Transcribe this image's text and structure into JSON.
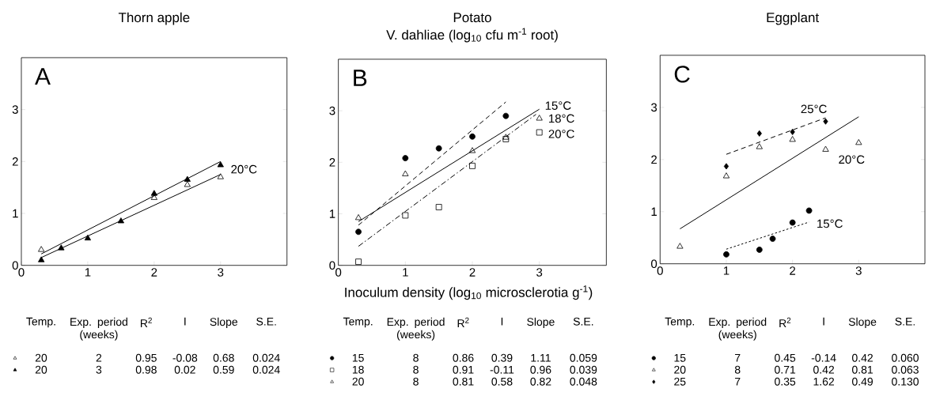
{
  "chart_data": [
    {
      "type": "scatter",
      "title": "Thorn apple",
      "xlim": [
        0,
        4
      ],
      "ylim": [
        0,
        4
      ],
      "xticks": [
        0,
        1,
        2,
        3
      ],
      "yticks": [
        0,
        1,
        2,
        3
      ],
      "annotations": [
        "A"
      ],
      "series": [
        {
          "type": "scatter",
          "marker": "triangle-open",
          "color": "#000000",
          "x": [
            0.3,
            2,
            2.5,
            3
          ],
          "values": [
            0.3,
            1.3,
            1.55,
            1.7
          ]
        },
        {
          "type": "scatter",
          "marker": "triangle",
          "color": "#000000",
          "x": [
            0.3,
            0.6,
            1,
            1.5,
            2,
            2.5,
            3
          ],
          "values": [
            0.1,
            0.33,
            0.52,
            0.85,
            1.38,
            1.65,
            1.93
          ]
        },
        {
          "type": "line",
          "name": "20°C",
          "line_style": "solid",
          "color": "#000000",
          "x": [
            0.3,
            3
          ],
          "values": [
            0.22,
            2.0
          ]
        },
        {
          "type": "line",
          "line_style": "solid",
          "color": "#000000",
          "x": [
            0.3,
            3
          ],
          "values": [
            0.15,
            1.75
          ]
        }
      ]
    },
    {
      "type": "scatter",
      "title": "Potato",
      "subtitle": "V. dahliae (log$_{10}$ cfu m$^{-1}$ root)",
      "xlabel": "Inoculum density (log$_{10}$ microsclerotia g$^{-1}$)",
      "xlim": [
        0,
        4
      ],
      "ylim": [
        0,
        4
      ],
      "xticks": [
        0,
        1,
        2,
        3
      ],
      "yticks": [
        0,
        1,
        2,
        3
      ],
      "annotations": [
        "B"
      ],
      "series": [
        {
          "type": "scatter",
          "marker": "circle",
          "color": "#000000",
          "x": [
            0.3,
            1,
            1.5,
            2,
            2.5
          ],
          "values": [
            0.65,
            2.08,
            2.27,
            2.5,
            2.9
          ]
        },
        {
          "type": "scatter",
          "marker": "square-open",
          "color": "#000000",
          "x": [
            0.3,
            1,
            1.5,
            2,
            2.5,
            3
          ],
          "values": [
            0.07,
            0.97,
            1.13,
            1.93,
            2.45,
            2.58
          ]
        },
        {
          "type": "scatter",
          "marker": "triangle-open",
          "color": "#000000",
          "x": [
            0.3,
            1,
            2,
            2.5,
            3
          ],
          "values": [
            0.92,
            1.77,
            2.22,
            2.48,
            2.85
          ]
        },
        {
          "type": "line",
          "name": "15°C",
          "line_style": "dashed",
          "color": "#000000",
          "x": [
            0.3,
            2.5
          ],
          "values": [
            0.78,
            3.17
          ]
        },
        {
          "type": "line",
          "name": "18°C",
          "line_style": "solid",
          "color": "#000000",
          "x": [
            0.3,
            3
          ],
          "values": [
            0.85,
            3.03
          ]
        },
        {
          "type": "line",
          "name": "20°C",
          "line_style": "dashdot",
          "color": "#000000",
          "x": [
            0.3,
            2.95
          ],
          "values": [
            0.37,
            2.93
          ]
        }
      ]
    },
    {
      "type": "scatter",
      "title": "Eggplant",
      "xlim": [
        0,
        4
      ],
      "ylim": [
        0,
        4
      ],
      "xticks": [
        0,
        1,
        2,
        3
      ],
      "yticks": [
        0,
        1,
        2,
        3
      ],
      "annotations": [
        "C"
      ],
      "series": [
        {
          "type": "scatter",
          "marker": "diamond",
          "color": "#000000",
          "x": [
            1,
            1.5,
            2,
            2.5
          ],
          "values": [
            1.87,
            2.5,
            2.53,
            2.73
          ]
        },
        {
          "type": "scatter",
          "marker": "triangle-open",
          "color": "#000000",
          "x": [
            0.3,
            1,
            1.5,
            2,
            2.5,
            3
          ],
          "values": [
            0.33,
            1.68,
            2.24,
            2.38,
            2.19,
            2.32
          ]
        },
        {
          "type": "scatter",
          "marker": "circle",
          "color": "#000000",
          "x": [
            1,
            1.5,
            1.7,
            2,
            2.25
          ],
          "values": [
            0.18,
            0.27,
            0.48,
            0.79,
            1.02
          ]
        },
        {
          "type": "line",
          "name": "25°C",
          "line_style": "dashed",
          "color": "#000000",
          "x": [
            1,
            2.5
          ],
          "values": [
            2.1,
            2.8
          ]
        },
        {
          "type": "line",
          "name": "20°C",
          "line_style": "solid",
          "color": "#000000",
          "x": [
            0.3,
            3
          ],
          "values": [
            0.67,
            2.82
          ]
        },
        {
          "type": "line",
          "name": "15°C",
          "line_style": "dotted",
          "color": "#000000",
          "x": [
            1,
            2.25
          ],
          "values": [
            0.28,
            0.8
          ]
        }
      ]
    },
    {
      "type": "other",
      "categories": [
        "Temp.",
        "Exp. period (weeks)",
        "R$^{2}$",
        "I",
        "Slope",
        "S.E."
      ],
      "series": [
        {
          "marker": "triangle-open",
          "color": "#000000",
          "values": [
            20,
            2,
            0.95,
            -0.08,
            0.68,
            0.024
          ],
          "value_labels": [
            "20",
            "2",
            "0.95",
            "-0.08",
            "0.68",
            "0.024"
          ]
        },
        {
          "marker": "triangle",
          "color": "#000000",
          "values": [
            20,
            3,
            0.98,
            0.02,
            0.59,
            0.024
          ],
          "value_labels": [
            "20",
            "3",
            "0.98",
            "0.02",
            "0.59",
            "0.024"
          ]
        }
      ]
    },
    {
      "type": "other",
      "categories": [
        "Temp.",
        "Exp. period (weeks)",
        "R$^{2}$",
        "I",
        "Slope",
        "S.E."
      ],
      "series": [
        {
          "marker": "circle",
          "color": "#000000",
          "values": [
            15,
            8,
            0.86,
            0.39,
            1.11,
            0.059
          ],
          "value_labels": [
            "15",
            "8",
            "0.86",
            "0.39",
            "1.11",
            "0.059"
          ]
        },
        {
          "marker": "square-open",
          "color": "#000000",
          "values": [
            18,
            8,
            0.91,
            -0.11,
            0.96,
            0.039
          ],
          "value_labels": [
            "18",
            "8",
            "0.91",
            "-0.11",
            "0.96",
            "0.039"
          ]
        },
        {
          "marker": "triangle-open",
          "color": "#000000",
          "values": [
            20,
            8,
            0.81,
            0.58,
            0.82,
            0.048
          ],
          "value_labels": [
            "20",
            "8",
            "0.81",
            "0.58",
            "0.82",
            "0.048"
          ]
        }
      ]
    },
    {
      "type": "other",
      "categories": [
        "Temp.",
        "Exp. period (weeks)",
        "R$^{2}$",
        "I",
        "Slope",
        "S.E."
      ],
      "series": [
        {
          "marker": "circle",
          "color": "#000000",
          "values": [
            15,
            7,
            0.45,
            -0.14,
            0.42,
            0.06
          ],
          "value_labels": [
            "15",
            "7",
            "0.45",
            "-0.14",
            "0.42",
            "0.060"
          ]
        },
        {
          "marker": "triangle-open",
          "color": "#000000",
          "values": [
            20,
            8,
            0.71,
            0.42,
            0.81,
            0.063
          ],
          "value_labels": [
            "20",
            "8",
            "0.71",
            "0.42",
            "0.81",
            "0.063"
          ]
        },
        {
          "marker": "diamond",
          "color": "#000000",
          "values": [
            25,
            7,
            0.35,
            1.62,
            0.49,
            0.13
          ],
          "value_labels": [
            "25",
            "7",
            "0.35",
            "1.62",
            "0.49",
            "0.130"
          ]
        }
      ]
    }
  ]
}
